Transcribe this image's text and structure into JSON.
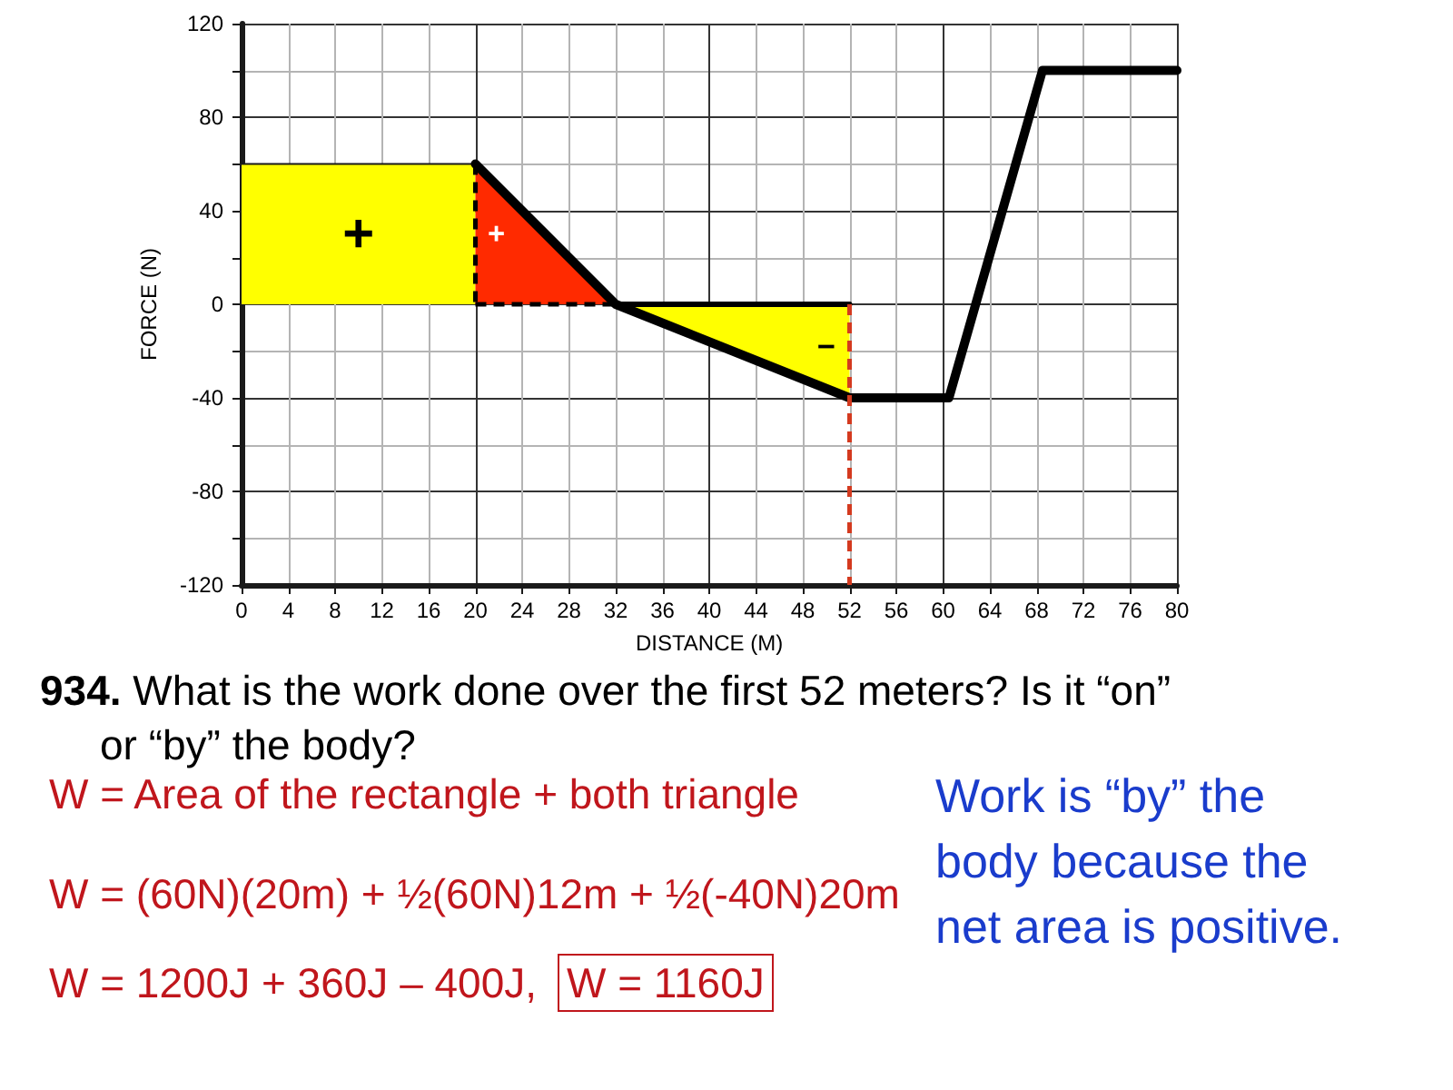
{
  "chart_data": {
    "type": "line",
    "xlabel": "DISTANCE (M)",
    "ylabel": "FORCE (N)",
    "xlim": [
      0,
      80
    ],
    "xticks": [
      0,
      4,
      8,
      12,
      16,
      20,
      24,
      28,
      32,
      36,
      40,
      44,
      48,
      52,
      56,
      60,
      64,
      68,
      72,
      76,
      80
    ],
    "ylim": [
      -120,
      120
    ],
    "yticks": [
      -120,
      {
        "value": -100,
        "label": null
      },
      -80,
      {
        "value": -60,
        "label": null
      },
      -40,
      {
        "value": -20,
        "label": null
      },
      0,
      {
        "value": 20,
        "label": null
      },
      40,
      {
        "value": 60,
        "label": null
      },
      80,
      {
        "value": 100,
        "label": null
      },
      120
    ],
    "grid": true,
    "series": [
      {
        "type": "area",
        "color": "#ffff00",
        "x": [
          0,
          20
        ],
        "values": [
          60,
          60
        ]
      },
      {
        "type": "area",
        "color": "#ff2a00",
        "x": [
          20,
          32
        ],
        "values": [
          60,
          0
        ]
      },
      {
        "type": "area",
        "color": "#ffff00",
        "x": [
          32,
          52
        ],
        "values": [
          0,
          -40
        ]
      },
      {
        "color": "#000000",
        "x": [
          20,
          32,
          52,
          60.5,
          68.5,
          80
        ],
        "values": [
          60,
          0,
          -40,
          -40,
          100,
          100
        ]
      },
      {
        "color": "#000000",
        "x": [
          32,
          52
        ],
        "values": [
          0,
          0
        ]
      },
      {
        "color": "#000000",
        "x": [
          20,
          32
        ],
        "values": [
          0,
          0
        ],
        "line_style": "dashed"
      },
      {
        "color": "#d43a1f",
        "x": [
          52,
          52
        ],
        "values": [
          0,
          -120
        ],
        "line_style": "dashed"
      },
      {
        "color": "#000000",
        "x": [
          20,
          20
        ],
        "values": [
          60,
          0
        ],
        "line_style": "dashed"
      }
    ],
    "annotations": [
      "+",
      "+",
      "−",
      "934. What is the work done over the first 52 meters? Is it “on”\nor “by” the body?",
      "W = Area of the rectangle + both triangle",
      "W = (60N)(20m) + ½(60N)12m + ½(-40N)20m",
      "W = 1200J + 360J – 400J,",
      "W = 1160J",
      "Work is “by” the\nbody because the\nnet area is positive."
    ]
  }
}
